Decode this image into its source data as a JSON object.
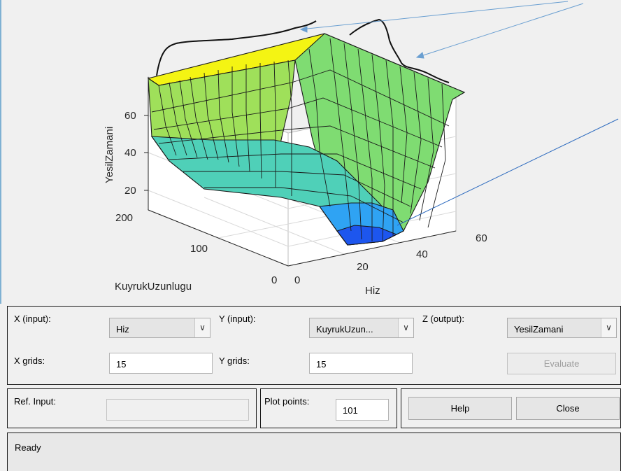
{
  "plot": {
    "zlabel": "YesilZamani",
    "xlabel": "Hiz",
    "ylabel": "KuyrukUzunlugu",
    "z_ticks": [
      "20",
      "40",
      "60"
    ],
    "y_ticks": [
      "0",
      "100",
      "200"
    ],
    "x_ticks": [
      "0",
      "20",
      "40",
      "60"
    ],
    "colors": {
      "high": "#f9fb0e",
      "mid": "#44d5a0",
      "low": "#1f63f0"
    }
  },
  "chart_data": {
    "type": "surface",
    "xlabel": "Hiz",
    "ylabel": "KuyrukUzunlugu",
    "zlabel": "YesilZamani",
    "xlim": [
      0,
      60
    ],
    "ylim": [
      0,
      200
    ],
    "zlim": [
      10,
      75
    ],
    "grid": true
  },
  "controls": {
    "x_input_label": "X (input):",
    "x_input_value": "Hiz",
    "y_input_label": "Y (input):",
    "y_input_value": "KuyrukUzun...",
    "z_output_label": "Z (output):",
    "z_output_value": "YesilZamani",
    "x_grids_label": "X grids:",
    "x_grids_value": "15",
    "y_grids_label": "Y grids:",
    "y_grids_value": "15",
    "evaluate_label": "Evaluate",
    "ref_input_label": "Ref. Input:",
    "ref_input_value": "",
    "plot_points_label": "Plot points:",
    "plot_points_value": "101",
    "help_label": "Help",
    "close_label": "Close"
  },
  "status": {
    "text": "Ready"
  }
}
